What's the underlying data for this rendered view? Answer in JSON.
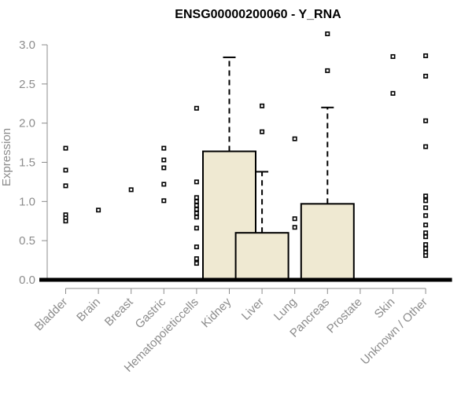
{
  "chart_data": {
    "type": "box",
    "title": "ENSG00000200060 - Y_RNA",
    "ylabel": "Expression",
    "ylim": [
      0,
      3.0
    ],
    "yticks": [
      "0.0",
      "0.5",
      "1.0",
      "1.5",
      "2.0",
      "2.5",
      "3.0"
    ],
    "categories": [
      "Bladder",
      "Brain",
      "Breast",
      "Gastric",
      "Hematopoieticcells",
      "Kidney",
      "Liver",
      "Lung",
      "Pancreas",
      "Prostate",
      "Skin",
      "Unknown / Other"
    ],
    "boxes": [
      {
        "category": "Bladder",
        "q1": 0,
        "median": 0,
        "q3": 0,
        "whisker_high": 0,
        "outliers": [
          1.68,
          1.4,
          1.2,
          0.83,
          0.79,
          0.75
        ]
      },
      {
        "category": "Brain",
        "q1": 0,
        "median": 0,
        "q3": 0,
        "whisker_high": 0,
        "outliers": [
          0.89
        ]
      },
      {
        "category": "Breast",
        "q1": 0,
        "median": 0,
        "q3": 0,
        "whisker_high": 0,
        "outliers": [
          1.15
        ]
      },
      {
        "category": "Gastric",
        "q1": 0,
        "median": 0,
        "q3": 0,
        "whisker_high": 0,
        "outliers": [
          1.68,
          1.53,
          1.43,
          1.22,
          1.01
        ]
      },
      {
        "category": "Hematopoieticcells",
        "q1": 0,
        "median": 0,
        "q3": 0,
        "whisker_high": 0,
        "outliers": [
          2.19,
          1.25,
          1.05,
          1.0,
          0.95,
          0.9,
          0.85,
          0.8,
          0.66,
          0.42,
          0.27,
          0.21
        ]
      },
      {
        "category": "Kidney",
        "q1": 0,
        "median": 0,
        "q3": 1.64,
        "whisker_high": 2.84,
        "outliers": []
      },
      {
        "category": "Liver",
        "q1": 0,
        "median": 0,
        "q3": 0.6,
        "whisker_high": 1.38,
        "outliers": [
          2.22,
          1.89
        ]
      },
      {
        "category": "Lung",
        "q1": 0,
        "median": 0,
        "q3": 0,
        "whisker_high": 0,
        "outliers": [
          1.8,
          0.78,
          0.67
        ]
      },
      {
        "category": "Pancreas",
        "q1": 0,
        "median": 0,
        "q3": 0.97,
        "whisker_high": 2.2,
        "outliers": [
          3.14,
          2.67
        ]
      },
      {
        "category": "Prostate",
        "q1": 0,
        "median": 0,
        "q3": 0,
        "whisker_high": 0,
        "outliers": []
      },
      {
        "category": "Skin",
        "q1": 0,
        "median": 0,
        "q3": 0,
        "whisker_high": 0,
        "outliers": [
          2.85,
          2.38
        ]
      },
      {
        "category": "Unknown / Other",
        "q1": 0,
        "median": 0,
        "q3": 0,
        "whisker_high": 0,
        "outliers": [
          2.86,
          2.6,
          2.03,
          1.7,
          1.07,
          1.01,
          0.92,
          0.82,
          0.7,
          0.6,
          0.55,
          0.45,
          0.4,
          0.35,
          0.31
        ]
      }
    ],
    "colors": {
      "box_fill": "#efe9d2",
      "axis": "#8c8c8c",
      "title": "#000000"
    },
    "grid": false,
    "legend": "none"
  }
}
